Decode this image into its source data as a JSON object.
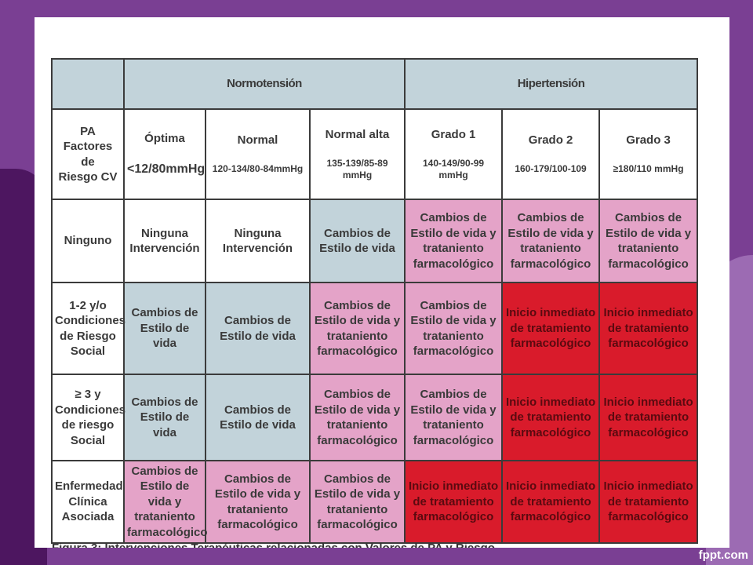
{
  "header": {
    "normotension": "Normotensión",
    "hipertension": "Hipertensión"
  },
  "corner_label": "PA\nFactores de\nRiesgo CV",
  "categories": [
    {
      "title": "Óptima",
      "range": "<12/80mmHg"
    },
    {
      "title": "Normal",
      "range": "120-134/80-84mmHg"
    },
    {
      "title": "Normal alta",
      "range": "135-139/85-89 mmHg"
    },
    {
      "title": "Grado 1",
      "range": "140-149/90-99 mmHg"
    },
    {
      "title": "Grado 2",
      "range": "160-179/100-109"
    },
    {
      "title": "Grado 3",
      "range": "≥180/110 mmHg"
    }
  ],
  "rows": [
    {
      "label": "Ninguno",
      "cells": [
        "Ninguna\nIntervención",
        "Ninguna\nIntervención",
        "Cambios de\nEstilo de vida",
        "Cambios de\nEstilo de vida y\ntrataniento\nfarmacológico",
        "Cambios de\nEstilo de vida y\ntrataniento\nfarmacológico",
        "Cambios de\nEstilo de vida y\ntrataniento\nfarmacológico"
      ]
    },
    {
      "label": "1-2 y/o\nCondiciones\nde Riesgo\nSocial",
      "cells": [
        "Cambios de\nEstilo de vida",
        "Cambios de\nEstilo de vida",
        "Cambios de\nEstilo de vida y\ntrataniento\nfarmacológico",
        "Cambios de\nEstilo de vida y\ntrataniento\nfarmacológico",
        "Inicio inmediato\nde tratamiento\nfarmacológico",
        "Inicio inmediato\nde tratamiento\nfarmacológico"
      ]
    },
    {
      "label": "≥ 3 y\nCondiciones\nde riesgo\nSocial",
      "cells": [
        "Cambios de\nEstilo de vida",
        "Cambios de\nEstilo de vida",
        "Cambios de\nEstilo de vida y\ntrataniento\nfarmacológico",
        "Cambios de\nEstilo de vida y\ntrataniento\nfarmacológico",
        "Inicio inmediato\nde tratamiento\nfarmacológico",
        "Inicio inmediato\nde tratamiento\nfarmacológico"
      ]
    },
    {
      "label": "Enfermedad\nClínica\nAsociada",
      "cells": [
        "Cambios de\nEstilo de vida y\ntrataniento\nfarmacológico",
        "Cambios de\nEstilo de vida y\ntrataniento\nfarmacológico",
        "Cambios de\nEstilo de vida y\ntrataniento\nfarmacológico",
        "Inicio inmediato\nde tratamiento\nfarmacológico",
        "Inicio inmediato\nde tratamiento\nfarmacológico",
        "Inicio inmediato\nde tratamiento\nfarmacológico"
      ]
    }
  ],
  "caption": "Figura 3: Intervenciones Terapéuticas relacionadas con Valores de PA y Riesgo",
  "brand": "fppt.com",
  "colors": {
    "header_blue": "#c2d3da",
    "pink": "#e4a3c8",
    "red": "#d91b2b",
    "white": "#ffffff",
    "slide_purple": "#7a3f93"
  }
}
